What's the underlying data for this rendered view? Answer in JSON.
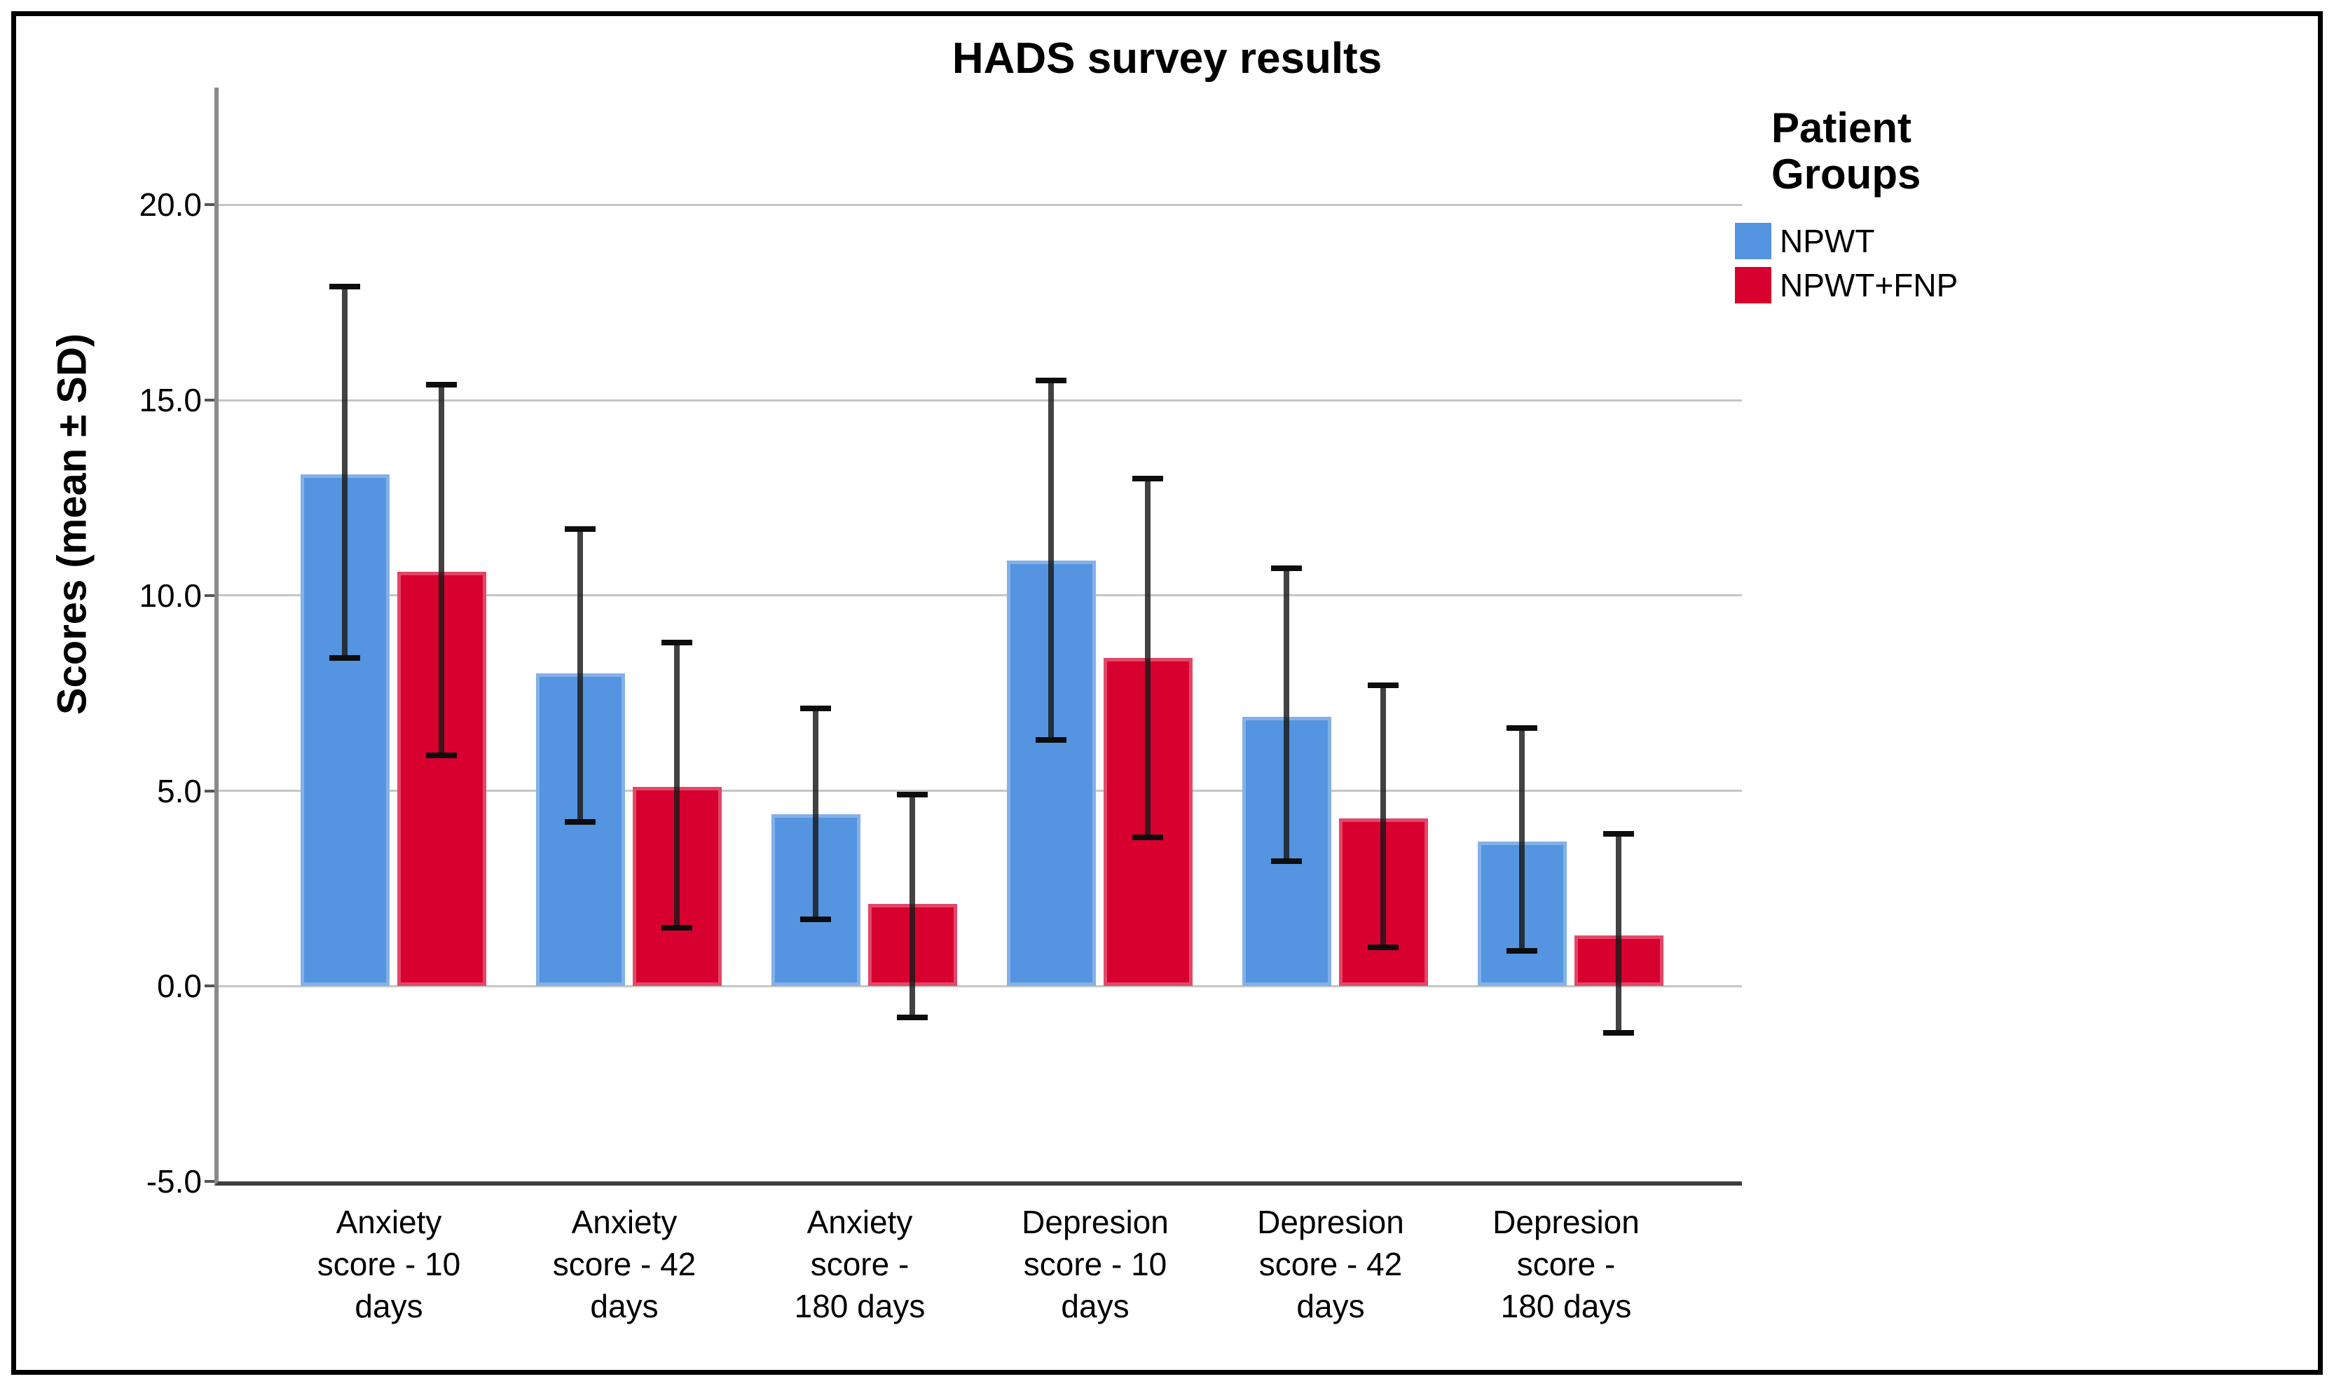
{
  "chart_data": {
    "type": "bar",
    "title": "HADS survey results",
    "ylabel": "Scores (mean ± SD)",
    "xlabel": "",
    "ylim": [
      -5,
      23
    ],
    "grid": true,
    "y_ticks": [
      {
        "value": 20,
        "label": "20.0"
      },
      {
        "value": 15,
        "label": "15.0"
      },
      {
        "value": 10,
        "label": "10.0"
      },
      {
        "value": 5,
        "label": "5.0"
      },
      {
        "value": 0,
        "label": "0.0"
      },
      {
        "value": -5,
        "label": "-5.0"
      }
    ],
    "categories": [
      "Anxiety\nscore - 10\ndays",
      "Anxiety\nscore - 42\ndays",
      "Anxiety\nscore -\n180 days",
      "Depresion\nscore - 10\ndays",
      "Depresion\nscore - 42\ndays",
      "Depresion\nscore -\n180 days"
    ],
    "series": [
      {
        "name": "NPWT",
        "color": "#5494E0",
        "values": [
          13.1,
          8.0,
          4.4,
          10.9,
          6.9,
          3.7
        ],
        "err_low": [
          8.4,
          4.2,
          1.7,
          6.3,
          3.2,
          0.9
        ],
        "err_high": [
          17.9,
          11.7,
          7.1,
          15.5,
          10.7,
          6.6
        ]
      },
      {
        "name": "NPWT+FNP",
        "color": "#D8002F",
        "values": [
          10.6,
          5.1,
          2.1,
          8.4,
          4.3,
          1.3
        ],
        "err_low": [
          5.9,
          1.5,
          -0.8,
          3.8,
          1.0,
          -1.2
        ],
        "err_high": [
          15.4,
          8.8,
          4.9,
          13.0,
          7.7,
          3.9
        ]
      }
    ],
    "legend": {
      "title": "Patient\nGroups",
      "position": "right",
      "entries": [
        "NPWT",
        "NPWT+FNP"
      ]
    }
  },
  "style_colors": {
    "gridline": "#c6c6c6",
    "y_spine": "#8a8a8a",
    "x_spine": "#3d3d3d",
    "error_bar": "#0d0d0d",
    "npwt_blue": "#5494E0",
    "npwt_fnp_red": "#D8002F",
    "frame": "#000000"
  }
}
